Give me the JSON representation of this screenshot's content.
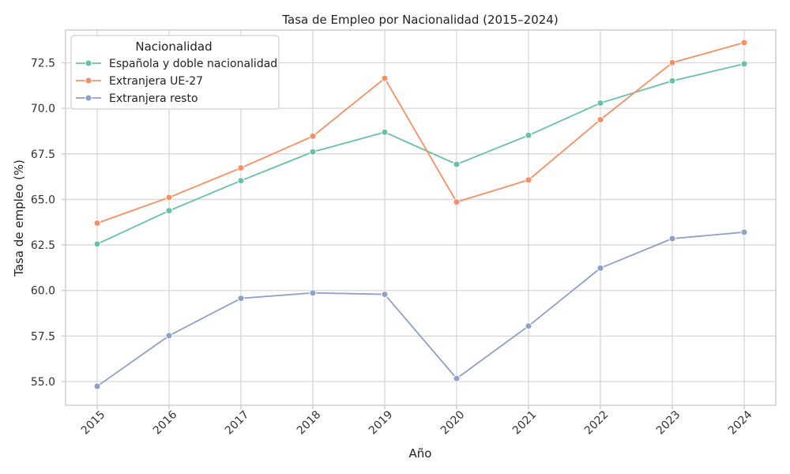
{
  "chart_data": {
    "type": "line",
    "title": "Tasa de Empleo por Nacionalidad (2015–2024)",
    "xlabel": "Año",
    "ylabel": "Tasa de empleo (%)",
    "x": [
      2015,
      2016,
      2017,
      2018,
      2019,
      2020,
      2021,
      2022,
      2023,
      2024
    ],
    "y_ticks": [
      55.0,
      57.5,
      60.0,
      62.5,
      65.0,
      67.5,
      70.0,
      72.5
    ],
    "y_tick_labels": [
      "55.0",
      "57.5",
      "60.0",
      "62.5",
      "65.0",
      "67.5",
      "70.0",
      "72.5"
    ],
    "ylim": [
      53.7,
      74.3
    ],
    "grid": true,
    "legend": {
      "title": "Nacionalidad",
      "placement": "upper-left"
    },
    "series": [
      {
        "name": "Española y doble nacionalidad",
        "color": "#66c2a5",
        "marker": "circle",
        "values": [
          62.55,
          64.38,
          66.03,
          67.61,
          68.69,
          66.93,
          68.52,
          70.29,
          71.51,
          72.44
        ]
      },
      {
        "name": "Extranjera UE-27",
        "color": "#fc8d62",
        "marker": "circle",
        "values": [
          63.7,
          65.11,
          66.73,
          68.47,
          71.65,
          64.86,
          66.07,
          69.38,
          72.51,
          73.61
        ]
      },
      {
        "name": "Extranjera resto",
        "color": "#8da0cb",
        "marker": "circle",
        "values": [
          54.74,
          57.52,
          59.57,
          59.87,
          59.79,
          55.17,
          58.05,
          61.23,
          62.85,
          63.2
        ]
      }
    ]
  }
}
